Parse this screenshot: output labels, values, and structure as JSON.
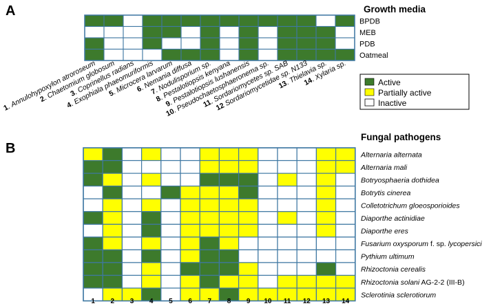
{
  "panels": {
    "a": "A",
    "b": "B"
  },
  "colors": {
    "active": "#3d7a2c",
    "partial": "#ffff00",
    "inactive": "#ffffff",
    "grid": "#3f78a3"
  },
  "legend": {
    "active": "Active",
    "partial": "Partially active",
    "inactive": "Inactive"
  },
  "species_columns": [
    {
      "num": "1",
      "sep": ". ",
      "name": "Annulohypoxylon atroroseum"
    },
    {
      "num": "2",
      "sep": ". ",
      "name": "Chaetomium globosum"
    },
    {
      "num": "3",
      "sep": ". ",
      "name": "Coprinellus radians"
    },
    {
      "num": "4",
      "sep": ". ",
      "name": "Exophiala phaeomuriformis"
    },
    {
      "num": "5",
      "sep": ". ",
      "name": "Microcera larvarum"
    },
    {
      "num": "6",
      "sep": ". ",
      "name": "Nemania diffusa"
    },
    {
      "num": "7",
      "sep": ". ",
      "name": "Nodulisporium sp."
    },
    {
      "num": "8",
      "sep": ". ",
      "name": "Pestalotiopsis kenyana"
    },
    {
      "num": "9",
      "sep": ". ",
      "name": "Pestalotiopsis lushanensis"
    },
    {
      "num": "10",
      "sep": ". ",
      "name": "Pseudochaetosphaeronema sp."
    },
    {
      "num": "11",
      "sep": ". ",
      "name": "Sordariomycetes sp. SAB"
    },
    {
      "num": "12",
      "sep": " ",
      "name": "Sordariomycetidae sp. N133"
    },
    {
      "num": "13",
      "sep": ". ",
      "name": "Thielavia sp."
    },
    {
      "num": "14",
      "sep": ". ",
      "name": "Xylaria sp."
    }
  ],
  "chart_data": [
    {
      "type": "heatmap",
      "title": "Growth media",
      "value_legend": {
        "2": "Active",
        "1": "Partially active",
        "0": "Inactive"
      },
      "columns": [
        "1",
        "2",
        "3",
        "4",
        "5",
        "6",
        "7",
        "8",
        "9",
        "10",
        "11",
        "12",
        "13",
        "14"
      ],
      "rows": [
        "BPDB",
        "MEB",
        "PDB",
        "Oatmeal"
      ],
      "values": [
        [
          2,
          2,
          0,
          2,
          2,
          2,
          2,
          2,
          2,
          2,
          2,
          2,
          0,
          2
        ],
        [
          0,
          0,
          0,
          2,
          2,
          0,
          2,
          0,
          2,
          0,
          2,
          2,
          2,
          0
        ],
        [
          2,
          0,
          0,
          2,
          0,
          0,
          2,
          0,
          2,
          0,
          2,
          2,
          2,
          0
        ],
        [
          2,
          0,
          0,
          0,
          2,
          2,
          2,
          0,
          2,
          0,
          2,
          2,
          2,
          2
        ]
      ]
    },
    {
      "type": "heatmap",
      "title": "Fungal pathogens",
      "value_legend": {
        "2": "Active",
        "1": "Partially active",
        "0": "Inactive"
      },
      "columns": [
        "1",
        "2",
        "3",
        "4",
        "5",
        "6",
        "7",
        "8",
        "9",
        "10",
        "11",
        "12",
        "13",
        "14"
      ],
      "rows": [
        {
          "name": "Alternaria alternata",
          "suffix": ""
        },
        {
          "name": "Alternaria mali",
          "suffix": ""
        },
        {
          "name": "Botryosphaeria dothidea",
          "suffix": ""
        },
        {
          "name": "Botrytis cinerea",
          "suffix": ""
        },
        {
          "name": "Colletotrichum gloeosporioides",
          "suffix": ""
        },
        {
          "name": "Diaporthe actinidiae",
          "suffix": ""
        },
        {
          "name": "Diaporthe eres",
          "suffix": ""
        },
        {
          "name": "Fusarium oxysporum",
          "mid": " f. sp. ",
          "tail": "lycopersici"
        },
        {
          "name": "Pythium ultimum",
          "suffix": ""
        },
        {
          "name": "Rhizoctonia cerealis",
          "suffix": ""
        },
        {
          "name": "Rhizoctonia solani",
          "suffix": " AG-2-2 (III-B)"
        },
        {
          "name": "Sclerotinia sclerotiorum",
          "suffix": ""
        }
      ],
      "values": [
        [
          1,
          2,
          0,
          1,
          0,
          0,
          1,
          1,
          1,
          0,
          0,
          0,
          1,
          1
        ],
        [
          2,
          2,
          0,
          0,
          0,
          0,
          1,
          1,
          1,
          0,
          0,
          0,
          1,
          1
        ],
        [
          2,
          1,
          0,
          1,
          0,
          0,
          2,
          2,
          2,
          0,
          1,
          0,
          1,
          0
        ],
        [
          0,
          2,
          0,
          0,
          2,
          1,
          1,
          1,
          2,
          0,
          0,
          0,
          1,
          0
        ],
        [
          0,
          1,
          0,
          1,
          0,
          1,
          1,
          1,
          1,
          0,
          0,
          0,
          1,
          0
        ],
        [
          2,
          1,
          0,
          2,
          0,
          1,
          1,
          1,
          1,
          0,
          1,
          0,
          1,
          0
        ],
        [
          0,
          1,
          0,
          2,
          0,
          1,
          1,
          1,
          1,
          0,
          0,
          0,
          1,
          0
        ],
        [
          2,
          1,
          0,
          1,
          0,
          1,
          2,
          1,
          0,
          0,
          0,
          0,
          0,
          0
        ],
        [
          2,
          2,
          0,
          2,
          0,
          1,
          2,
          2,
          0,
          0,
          0,
          0,
          0,
          0
        ],
        [
          2,
          2,
          0,
          1,
          0,
          2,
          2,
          2,
          1,
          0,
          0,
          0,
          2,
          0
        ],
        [
          2,
          2,
          0,
          1,
          0,
          1,
          2,
          1,
          1,
          0,
          1,
          1,
          1,
          1
        ],
        [
          0,
          1,
          1,
          2,
          0,
          1,
          1,
          2,
          1,
          1,
          1,
          1,
          1,
          1
        ]
      ]
    }
  ]
}
